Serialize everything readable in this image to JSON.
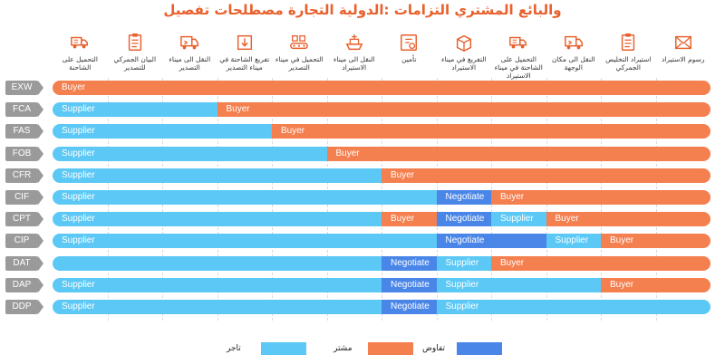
{
  "title": "والبائع المشتري التزامات :الدولية التجارة مصطلحات تفصيل",
  "colors": {
    "supplier": "#5bc8f5",
    "buyer": "#f47f4f",
    "negotiate": "#4a86e8"
  },
  "columns": [
    {
      "label": "التحميل على الشاحنة",
      "icon": "truck-loading-icon"
    },
    {
      "label": "البيان الجمركي للتصدير",
      "icon": "clipboard-icon"
    },
    {
      "label": "النقل الى ميناء التصدير",
      "icon": "delivery-truck-icon"
    },
    {
      "label": "تفريغ الشاحنة في ميناء التصدير",
      "icon": "box-unload-icon"
    },
    {
      "label": "التحميل في ميناء التصدير",
      "icon": "conveyor-icon"
    },
    {
      "label": "النقل الى ميناء الاستيراد",
      "icon": "ship-icon"
    },
    {
      "label": "تأمين",
      "icon": "insurance-icon"
    },
    {
      "label": "التفريغ في ميناء الاستيراد",
      "icon": "package-icon"
    },
    {
      "label": "التحميل على الشاحنة في ميناء الاستيراد",
      "icon": "truck-loading-icon"
    },
    {
      "label": "النقل الى مكان الوجهة",
      "icon": "delivery-truck-icon"
    },
    {
      "label": "استيراد التخليص الجمركي",
      "icon": "clipboard-icon"
    },
    {
      "label": "رسوم الاستيراد",
      "icon": "envelope-icon"
    }
  ],
  "rows": [
    {
      "term": "EXW",
      "segments": [
        {
          "party": "buyer",
          "label": "Buyer",
          "span": 12
        }
      ]
    },
    {
      "term": "FCA",
      "segments": [
        {
          "party": "supplier",
          "label": "Supplier",
          "span": 3
        },
        {
          "party": "buyer",
          "label": "Buyer",
          "span": 9
        }
      ]
    },
    {
      "term": "FAS",
      "segments": [
        {
          "party": "supplier",
          "label": "Supplier",
          "span": 4
        },
        {
          "party": "buyer",
          "label": "Buyer",
          "span": 8
        }
      ]
    },
    {
      "term": "FOB",
      "segments": [
        {
          "party": "supplier",
          "label": "Supplier",
          "span": 5
        },
        {
          "party": "buyer",
          "label": "Buyer",
          "span": 7
        }
      ]
    },
    {
      "term": "CFR",
      "segments": [
        {
          "party": "supplier",
          "label": "Supplier",
          "span": 6
        },
        {
          "party": "buyer",
          "label": "Buyer",
          "span": 6
        }
      ]
    },
    {
      "term": "CIF",
      "segments": [
        {
          "party": "supplier",
          "label": "Supplier",
          "span": 7
        },
        {
          "party": "negotiate",
          "label": "Negotiate",
          "span": 1
        },
        {
          "party": "buyer",
          "label": "Buyer",
          "span": 4
        }
      ]
    },
    {
      "term": "CPT",
      "segments": [
        {
          "party": "supplier",
          "label": "Supplier",
          "span": 6
        },
        {
          "party": "buyer",
          "label": "Buyer",
          "span": 1
        },
        {
          "party": "negotiate",
          "label": "Negotiate",
          "span": 1
        },
        {
          "party": "supplier",
          "label": "Supplier",
          "span": 1
        },
        {
          "party": "buyer",
          "label": "Buyer",
          "span": 3
        }
      ]
    },
    {
      "term": "CIP",
      "segments": [
        {
          "party": "supplier",
          "label": "Supplier",
          "span": 7
        },
        {
          "party": "negotiate",
          "label": "Negotiate",
          "span": 2
        },
        {
          "party": "supplier",
          "label": "Supplier",
          "span": 1
        },
        {
          "party": "buyer",
          "label": "Buyer",
          "span": 2
        }
      ]
    },
    {
      "term": "DAT",
      "segments": [
        {
          "party": "supplier",
          "label": "",
          "span": 6
        },
        {
          "party": "negotiate",
          "label": "Negotiate",
          "span": 1
        },
        {
          "party": "supplier",
          "label": "Supplier",
          "span": 1
        },
        {
          "party": "buyer",
          "label": "Buyer",
          "span": 4
        }
      ]
    },
    {
      "term": "DAP",
      "segments": [
        {
          "party": "supplier",
          "label": "Supplier",
          "span": 6
        },
        {
          "party": "negotiate",
          "label": "Negotiate",
          "span": 1
        },
        {
          "party": "supplier",
          "label": "Supplier",
          "span": 3
        },
        {
          "party": "buyer",
          "label": "Buyer",
          "span": 2
        }
      ]
    },
    {
      "term": "DDP",
      "segments": [
        {
          "party": "supplier",
          "label": "Supplier",
          "span": 6
        },
        {
          "party": "negotiate",
          "label": "Negotiate",
          "span": 1
        },
        {
          "party": "supplier",
          "label": "Supplier",
          "span": 5
        }
      ]
    }
  ],
  "legend": [
    {
      "party": "supplier",
      "label": "تاجر"
    },
    {
      "party": "buyer",
      "label": "مشتر"
    },
    {
      "party": "negotiate",
      "label": "تفاوض"
    }
  ]
}
